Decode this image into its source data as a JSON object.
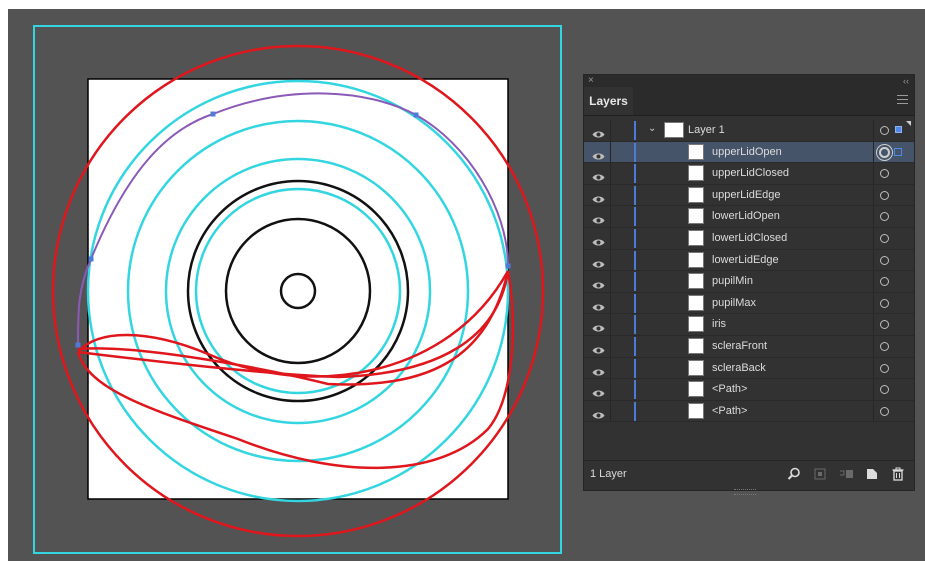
{
  "panel": {
    "close_glyph": "×",
    "collapse_glyph": "‹‹",
    "tab_label": "Layers",
    "menu_icon": "hamburger-menu-icon",
    "footer_count": "1 Layer"
  },
  "layers": [
    {
      "name": "Layer 1",
      "type": "layer",
      "expanded": true
    },
    {
      "name": "upperLidOpen",
      "type": "path",
      "selected": true
    },
    {
      "name": "upperLidClosed",
      "type": "path"
    },
    {
      "name": "upperLidEdge",
      "type": "path"
    },
    {
      "name": "lowerLidOpen",
      "type": "path"
    },
    {
      "name": "lowerLidClosed",
      "type": "path"
    },
    {
      "name": "lowerLidEdge",
      "type": "path"
    },
    {
      "name": "pupilMin",
      "type": "path"
    },
    {
      "name": "pupilMax",
      "type": "path"
    },
    {
      "name": "iris",
      "type": "path"
    },
    {
      "name": "scleraFront",
      "type": "path"
    },
    {
      "name": "scleraBack",
      "type": "path"
    },
    {
      "name": "<Path>",
      "type": "path"
    },
    {
      "name": "<Path>",
      "type": "path"
    }
  ],
  "footer_icons": [
    "search-icon",
    "clipping-mask-icon",
    "new-sublayer-icon",
    "new-layer-icon",
    "trash-icon"
  ],
  "colors": {
    "workspace_bg": "#535353",
    "guide_cyan": "#33d6e0",
    "path_red": "#e0161d",
    "selected_path_purple": "#8a5ab8",
    "layer_color_blue": "#4f7bd8",
    "selected_row": "#46546a"
  }
}
